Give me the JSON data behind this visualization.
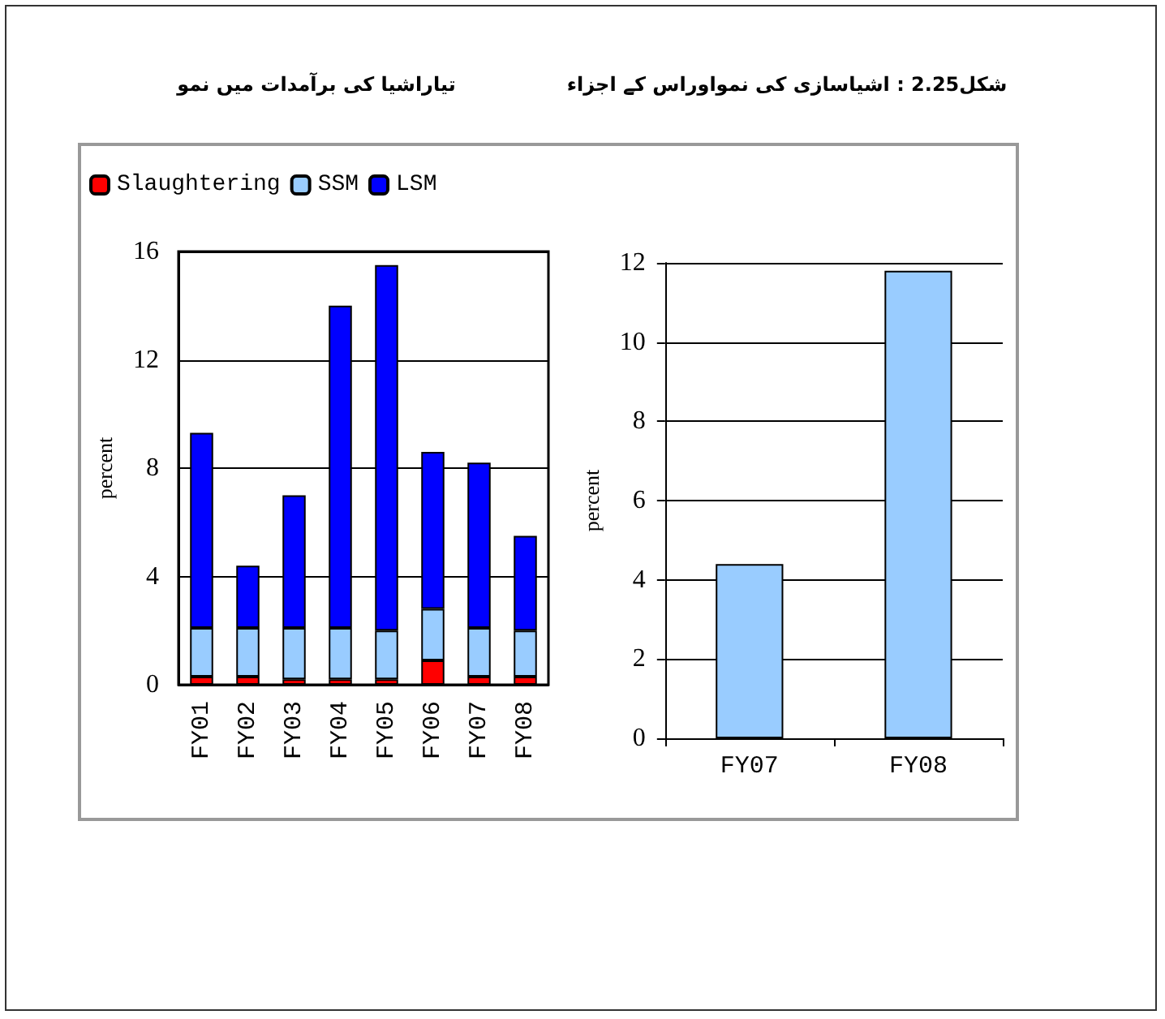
{
  "chart_data": [
    {
      "type": "bar",
      "title": "تیاراشیا کی برآمدات میں نمو",
      "ylabel": "percent",
      "categories": [
        "FY01",
        "FY02",
        "FY03",
        "FY04",
        "FY05",
        "FY06",
        "FY07",
        "FY08"
      ],
      "stacked": true,
      "series": [
        {
          "name": "Slaughtering",
          "color": "#ff0000",
          "values": [
            0.3,
            0.3,
            0.2,
            0.2,
            0.2,
            0.9,
            0.3,
            0.3
          ]
        },
        {
          "name": "SSM",
          "color": "#99ccff",
          "values": [
            1.8,
            1.8,
            1.9,
            1.9,
            1.8,
            1.9,
            1.8,
            1.7
          ]
        },
        {
          "name": "LSM",
          "color": "#0000ff",
          "values": [
            7.2,
            2.3,
            4.9,
            11.9,
            13.5,
            5.8,
            6.1,
            3.5
          ]
        }
      ],
      "ylim": [
        0,
        16
      ],
      "yticks": [
        0,
        4,
        8,
        12,
        16
      ],
      "grid": "y",
      "legend": "top"
    },
    {
      "type": "bar",
      "title": "شکل2.25 : اشیاسازی کی نمواوراس کے اجزاء",
      "ylabel": "percent",
      "categories": [
        "FY07",
        "FY08"
      ],
      "series": [
        {
          "color": "#99ccff",
          "values": [
            4.4,
            11.8
          ]
        }
      ],
      "ylim": [
        0,
        12
      ],
      "yticks": [
        0,
        2,
        4,
        6,
        8,
        10,
        12
      ],
      "grid": "y",
      "legend": false
    }
  ]
}
